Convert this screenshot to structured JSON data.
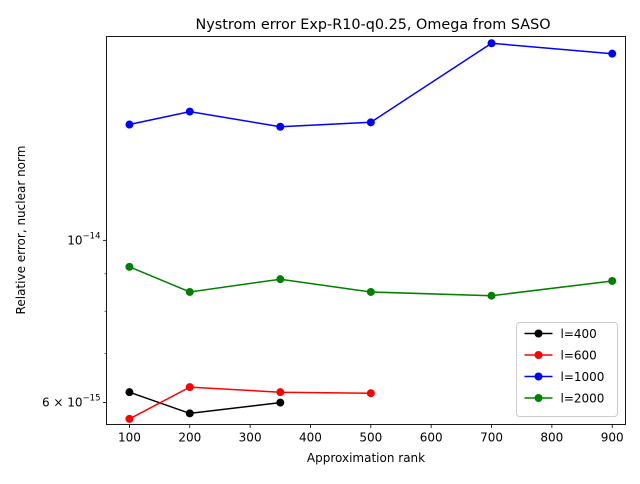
{
  "chart_data": {
    "type": "line",
    "title": "Nystrom error Exp-R10-q0.25, Omega from SASO",
    "xlabel": "Approximation rank",
    "ylabel": "Relative error, nuclear norm",
    "xlim": [
      62,
      922
    ],
    "ylim": [
      5.6e-15,
      1.9e-14
    ],
    "yscale": "log",
    "x_ticks": [
      100,
      200,
      300,
      400,
      500,
      600,
      700,
      800,
      900
    ],
    "x_tick_labels": [
      "100",
      "200",
      "300",
      "400",
      "500",
      "600",
      "700",
      "800",
      "900"
    ],
    "y_major_ticks": [
      {
        "value": 1e-14,
        "mantissa": "10",
        "exponent": "−14"
      },
      {
        "value": 6e-15,
        "mantissa": "6 × 10",
        "exponent": "−15"
      }
    ],
    "y_minor_ticks": [
      7e-15,
      8e-15,
      9e-15
    ],
    "legend_position": "lower-right",
    "grid": false,
    "series": [
      {
        "name": "l=400",
        "color": "#000000",
        "x": [
          100,
          200,
          350
        ],
        "y": [
          6.2e-15,
          5.8e-15,
          6e-15
        ]
      },
      {
        "name": "l=600",
        "color": "#ff0000",
        "x": [
          100,
          200,
          350,
          500
        ],
        "y": [
          5.7e-15,
          6.3e-15,
          6.2e-15,
          6.18e-15
        ]
      },
      {
        "name": "l=1000",
        "color": "#0000ff",
        "x": [
          100,
          200,
          350,
          500,
          700,
          900
        ],
        "y": [
          1.44e-14,
          1.5e-14,
          1.43e-14,
          1.45e-14,
          1.86e-14,
          1.8e-14
        ]
      },
      {
        "name": "l=2000",
        "color": "#008000",
        "x": [
          100,
          200,
          350,
          500,
          700,
          900
        ],
        "y": [
          9.2e-15,
          8.5e-15,
          8.85e-15,
          8.5e-15,
          8.4e-15,
          8.8e-15
        ]
      }
    ]
  }
}
